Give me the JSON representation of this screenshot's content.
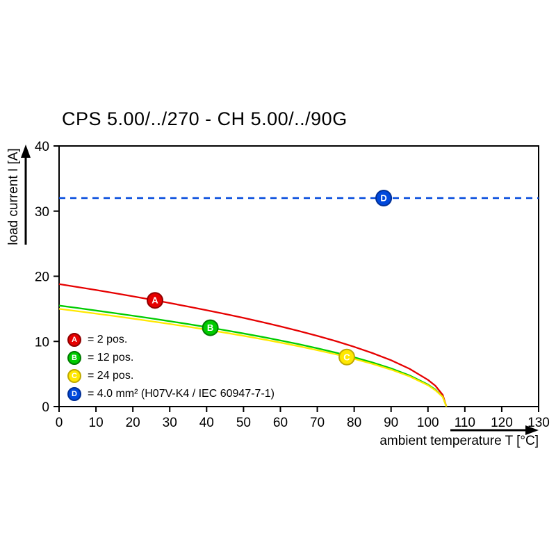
{
  "title": "CPS 5.00/../270 - CH 5.00/../90G",
  "chart_data": {
    "type": "line",
    "title": "CPS 5.00/../270 - CH 5.00/../90G",
    "xlabel": "ambient temperature T [°C]",
    "ylabel": "load current I [A]",
    "xlim": [
      0,
      130
    ],
    "ylim": [
      0,
      40
    ],
    "x_ticks": [
      0,
      10,
      20,
      30,
      40,
      50,
      60,
      70,
      80,
      90,
      100,
      110,
      120,
      130
    ],
    "y_ticks": [
      0,
      10,
      20,
      30,
      40
    ],
    "grid": false,
    "legend_position": "inside lower-left",
    "series": [
      {
        "name": "A",
        "legend_label": "= 2 pos.",
        "color": "#e60000",
        "border_color": "#8f0000",
        "dashed": false,
        "x": [
          0,
          5,
          10,
          15,
          20,
          25,
          30,
          35,
          40,
          45,
          50,
          55,
          60,
          65,
          70,
          75,
          80,
          85,
          90,
          95,
          100,
          102,
          104,
          105
        ],
        "y": [
          18.8,
          18.35,
          17.89,
          17.41,
          16.92,
          16.41,
          15.89,
          15.35,
          14.79,
          14.21,
          13.61,
          12.97,
          12.31,
          11.6,
          10.85,
          10.05,
          9.17,
          8.2,
          7.11,
          5.8,
          4.1,
          3.2,
          1.8,
          0
        ],
        "marker": {
          "x": 26,
          "y": 16.3
        }
      },
      {
        "name": "B",
        "legend_label": "= 12 pos.",
        "color": "#00cc00",
        "border_color": "#007a00",
        "dashed": false,
        "x": [
          0,
          5,
          10,
          15,
          20,
          25,
          30,
          35,
          40,
          45,
          50,
          55,
          60,
          65,
          70,
          75,
          80,
          85,
          90,
          95,
          100,
          102,
          104,
          105
        ],
        "y": [
          15.5,
          15.13,
          14.74,
          14.35,
          13.95,
          13.53,
          13.1,
          12.66,
          12.2,
          11.72,
          11.22,
          10.7,
          10.15,
          9.57,
          8.95,
          8.28,
          7.56,
          6.76,
          5.86,
          4.78,
          3.38,
          2.6,
          1.5,
          0
        ],
        "marker": {
          "x": 41,
          "y": 12.1
        }
      },
      {
        "name": "C",
        "legend_label": "= 24 pos.",
        "color": "#ffe800",
        "border_color": "#bfa900",
        "dashed": false,
        "x": [
          0,
          5,
          10,
          15,
          20,
          25,
          30,
          35,
          40,
          45,
          50,
          55,
          60,
          65,
          70,
          75,
          80,
          85,
          90,
          95,
          100,
          102,
          104,
          105
        ],
        "y": [
          15.0,
          14.64,
          14.27,
          13.89,
          13.5,
          13.09,
          12.68,
          12.25,
          11.8,
          11.34,
          10.86,
          10.35,
          9.82,
          9.26,
          8.66,
          8.02,
          7.32,
          6.55,
          5.67,
          4.63,
          3.27,
          2.5,
          1.5,
          0
        ],
        "marker": {
          "x": 78,
          "y": 7.6
        }
      },
      {
        "name": "D",
        "legend_label": "= 4.0 mm² (H07V-K4 / IEC 60947-7-1)",
        "color": "#0048dc",
        "border_color": "#002f96",
        "dashed": true,
        "x": [
          0,
          130
        ],
        "y": [
          32,
          32
        ],
        "marker": {
          "x": 88,
          "y": 32
        }
      }
    ]
  }
}
